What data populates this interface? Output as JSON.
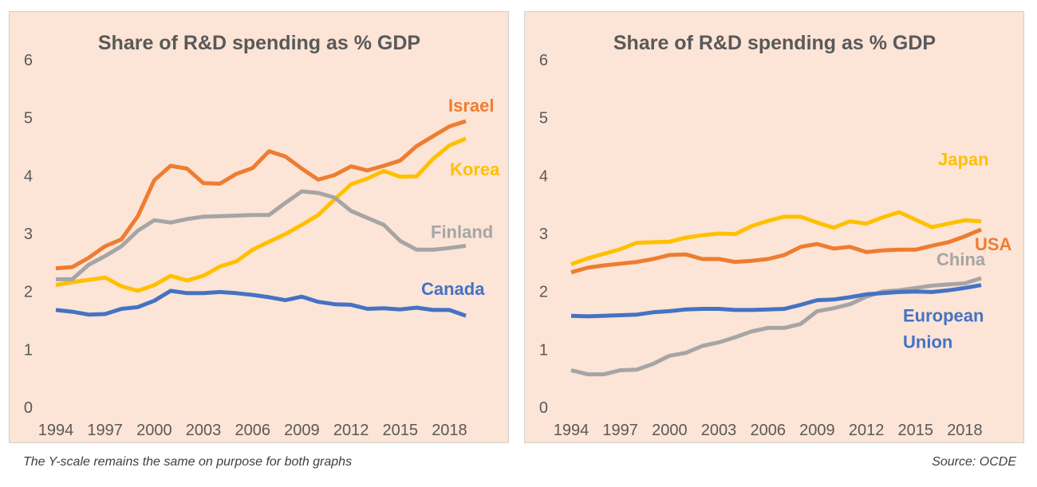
{
  "footer": {
    "note": "The Y-scale remains the same on purpose for both graphs",
    "source": "Source: OCDE"
  },
  "chart_data": [
    {
      "type": "line",
      "title": "Share of R&D spending as % GDP",
      "xlabel": "",
      "ylabel": "",
      "ylim": [
        0,
        6
      ],
      "xlim": [
        1994,
        2019
      ],
      "yticks": [
        "0",
        "1",
        "2",
        "3",
        "4",
        "5",
        "6"
      ],
      "xticks": [
        "1994",
        "1997",
        "2000",
        "2003",
        "2006",
        "2009",
        "2012",
        "2015",
        "2018"
      ],
      "grid": false,
      "legend": "inline-right",
      "x": [
        1994,
        1995,
        1996,
        1997,
        1998,
        1999,
        2000,
        2001,
        2002,
        2003,
        2004,
        2005,
        2006,
        2007,
        2008,
        2009,
        2010,
        2011,
        2012,
        2013,
        2014,
        2015,
        2016,
        2017,
        2018,
        2019
      ],
      "series": [
        {
          "name": "Israel",
          "color": "#ed7d31",
          "values": [
            2.4,
            2.42,
            2.58,
            2.78,
            2.9,
            3.3,
            3.92,
            4.17,
            4.12,
            3.87,
            3.86,
            4.03,
            4.13,
            4.42,
            4.33,
            4.12,
            3.93,
            4.01,
            4.16,
            4.09,
            4.17,
            4.26,
            4.51,
            4.68,
            4.85,
            4.94
          ]
        },
        {
          "name": "Korea",
          "color": "#ffc000",
          "values": [
            2.11,
            2.16,
            2.2,
            2.24,
            2.09,
            2.01,
            2.11,
            2.27,
            2.19,
            2.27,
            2.43,
            2.52,
            2.72,
            2.86,
            2.99,
            3.15,
            3.32,
            3.59,
            3.85,
            3.95,
            4.08,
            3.98,
            3.99,
            4.29,
            4.52,
            4.64
          ]
        },
        {
          "name": "Finland",
          "color": "#a5a5a5",
          "values": [
            2.21,
            2.21,
            2.46,
            2.61,
            2.78,
            3.05,
            3.23,
            3.19,
            3.25,
            3.29,
            3.3,
            3.31,
            3.32,
            3.32,
            3.53,
            3.73,
            3.7,
            3.62,
            3.39,
            3.27,
            3.15,
            2.87,
            2.72,
            2.72,
            2.75,
            2.79
          ]
        },
        {
          "name": "Canada",
          "color": "#4472c4",
          "values": [
            1.68,
            1.65,
            1.6,
            1.61,
            1.7,
            1.73,
            1.84,
            2.01,
            1.97,
            1.97,
            1.99,
            1.97,
            1.94,
            1.9,
            1.85,
            1.91,
            1.82,
            1.78,
            1.77,
            1.7,
            1.71,
            1.69,
            1.72,
            1.68,
            1.68,
            1.58
          ]
        }
      ]
    },
    {
      "type": "line",
      "title": "Share of R&D spending as % GDP",
      "xlabel": "",
      "ylabel": "",
      "ylim": [
        0,
        6
      ],
      "xlim": [
        1994,
        2019
      ],
      "yticks": [
        "0",
        "1",
        "2",
        "3",
        "4",
        "5",
        "6"
      ],
      "xticks": [
        "1994",
        "1997",
        "2000",
        "2003",
        "2006",
        "2009",
        "2012",
        "2015",
        "2018"
      ],
      "grid": false,
      "legend": "inline-right",
      "x": [
        1994,
        1995,
        1996,
        1997,
        1998,
        1999,
        2000,
        2001,
        2002,
        2003,
        2004,
        2005,
        2006,
        2007,
        2008,
        2009,
        2010,
        2011,
        2012,
        2013,
        2014,
        2015,
        2016,
        2017,
        2018,
        2019
      ],
      "series": [
        {
          "name": "Japan",
          "color": "#ffc000",
          "values": [
            2.47,
            2.57,
            2.65,
            2.73,
            2.84,
            2.85,
            2.86,
            2.93,
            2.97,
            3.0,
            2.99,
            3.13,
            3.22,
            3.29,
            3.29,
            3.19,
            3.1,
            3.21,
            3.17,
            3.28,
            3.37,
            3.24,
            3.11,
            3.17,
            3.23,
            3.21
          ]
        },
        {
          "name": "USA",
          "color": "#ed7d31",
          "values": [
            2.33,
            2.41,
            2.45,
            2.48,
            2.51,
            2.56,
            2.63,
            2.64,
            2.56,
            2.56,
            2.51,
            2.53,
            2.56,
            2.63,
            2.77,
            2.82,
            2.74,
            2.77,
            2.68,
            2.71,
            2.72,
            2.72,
            2.79,
            2.85,
            2.95,
            3.07
          ]
        },
        {
          "name": "China",
          "color": "#a5a5a5",
          "values": [
            0.64,
            0.57,
            0.57,
            0.64,
            0.65,
            0.75,
            0.89,
            0.94,
            1.06,
            1.12,
            1.21,
            1.31,
            1.37,
            1.37,
            1.44,
            1.66,
            1.71,
            1.78,
            1.91,
            2.0,
            2.02,
            2.06,
            2.1,
            2.12,
            2.14,
            2.23
          ]
        },
        {
          "name": "European\nUnion",
          "color": "#4472c4",
          "values": [
            1.58,
            1.57,
            1.58,
            1.59,
            1.6,
            1.64,
            1.66,
            1.69,
            1.7,
            1.7,
            1.68,
            1.68,
            1.69,
            1.7,
            1.77,
            1.85,
            1.86,
            1.9,
            1.95,
            1.97,
            1.99,
            2.0,
            1.99,
            2.02,
            2.06,
            2.11
          ]
        }
      ]
    }
  ]
}
